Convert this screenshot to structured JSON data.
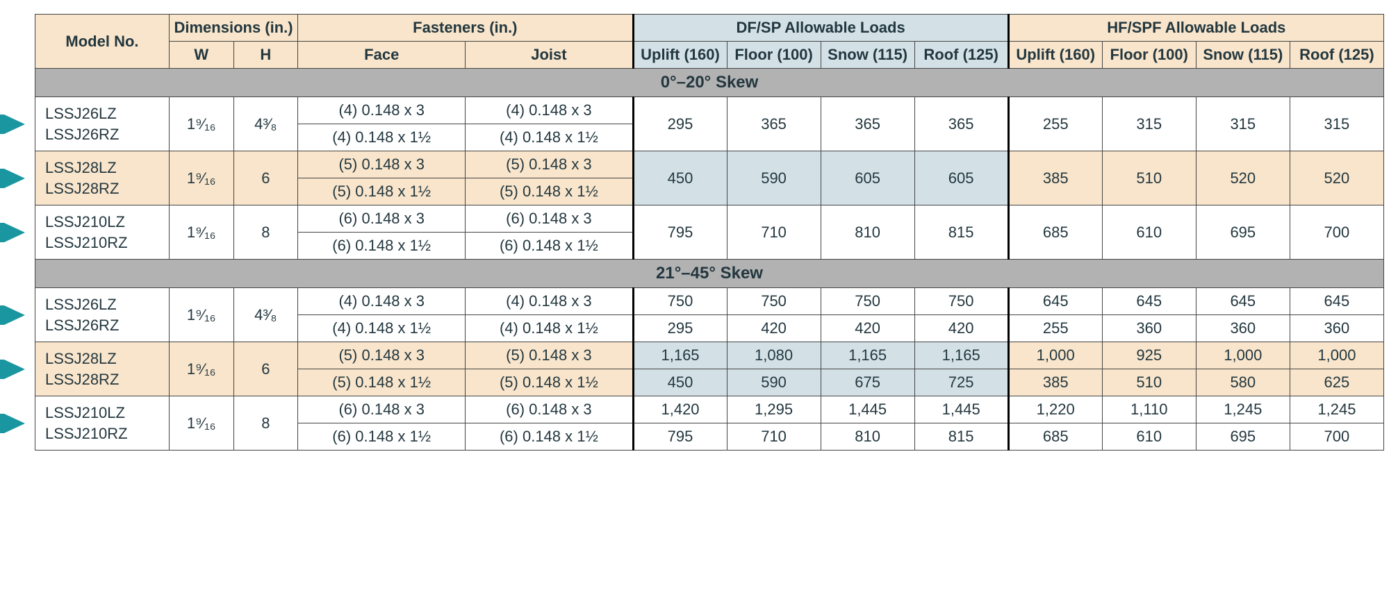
{
  "colors": {
    "header_tan": "#f8e5cb",
    "header_blue": "#d3e1e7",
    "section_gray": "#b2b2b2",
    "marker_teal": "#1996a0",
    "border": "#444444",
    "text": "#23373f"
  },
  "headers": {
    "model": "Model No.",
    "dimensions": "Dimensions (in.)",
    "dim_w": "W",
    "dim_h": "H",
    "fasteners": "Fasteners (in.)",
    "face": "Face",
    "joist": "Joist",
    "dfsp": "DF/SP Allowable Loads",
    "hfspf": "HF/SPF Allowable Loads",
    "uplift": "Uplift (160)",
    "floor": "Floor (100)",
    "snow": "Snow (115)",
    "roof": "Roof (125)"
  },
  "sections": [
    {
      "title": "0°–20° Skew",
      "rows": [
        {
          "shaded": false,
          "models": [
            "LSSJ26LZ",
            "LSSJ26RZ"
          ],
          "w": "1⁹⁄₁₆",
          "h": "4³⁄₈",
          "fasteners": [
            {
              "face": "(4) 0.148 x 3",
              "joist": "(4) 0.148 x 3"
            },
            {
              "face": "(4) 0.148 x 1½",
              "joist": "(4) 0.148 x 1½"
            }
          ],
          "merged_loads": true,
          "dfsp": {
            "uplift": "295",
            "floor": "365",
            "snow": "365",
            "roof": "365"
          },
          "hfspf": {
            "uplift": "255",
            "floor": "315",
            "snow": "315",
            "roof": "315"
          }
        },
        {
          "shaded": true,
          "models": [
            "LSSJ28LZ",
            "LSSJ28RZ"
          ],
          "w": "1⁹⁄₁₆",
          "h": "6",
          "fasteners": [
            {
              "face": "(5) 0.148 x 3",
              "joist": "(5) 0.148 x 3"
            },
            {
              "face": "(5) 0.148 x 1½",
              "joist": "(5) 0.148 x 1½"
            }
          ],
          "merged_loads": true,
          "dfsp_blue": true,
          "dfsp": {
            "uplift": "450",
            "floor": "590",
            "snow": "605",
            "roof": "605"
          },
          "hfspf": {
            "uplift": "385",
            "floor": "510",
            "snow": "520",
            "roof": "520"
          }
        },
        {
          "shaded": false,
          "models": [
            "LSSJ210LZ",
            "LSSJ210RZ"
          ],
          "w": "1⁹⁄₁₆",
          "h": "8",
          "fasteners": [
            {
              "face": "(6) 0.148 x 3",
              "joist": "(6) 0.148 x 3"
            },
            {
              "face": "(6) 0.148 x 1½",
              "joist": "(6) 0.148 x 1½"
            }
          ],
          "merged_loads": true,
          "dfsp": {
            "uplift": "795",
            "floor": "710",
            "snow": "810",
            "roof": "815"
          },
          "hfspf": {
            "uplift": "685",
            "floor": "610",
            "snow": "695",
            "roof": "700"
          }
        }
      ]
    },
    {
      "title": "21°–45° Skew",
      "rows": [
        {
          "shaded": false,
          "models": [
            "LSSJ26LZ",
            "LSSJ26RZ"
          ],
          "w": "1⁹⁄₁₆",
          "h": "4³⁄₈",
          "fasteners": [
            {
              "face": "(4) 0.148 x 3",
              "joist": "(4) 0.148 x 3"
            },
            {
              "face": "(4) 0.148 x 1½",
              "joist": "(4) 0.148 x 1½"
            }
          ],
          "merged_loads": false,
          "loads": [
            {
              "dfsp": {
                "uplift": "750",
                "floor": "750",
                "snow": "750",
                "roof": "750"
              },
              "hfspf": {
                "uplift": "645",
                "floor": "645",
                "snow": "645",
                "roof": "645"
              }
            },
            {
              "dfsp": {
                "uplift": "295",
                "floor": "420",
                "snow": "420",
                "roof": "420"
              },
              "hfspf": {
                "uplift": "255",
                "floor": "360",
                "snow": "360",
                "roof": "360"
              }
            }
          ]
        },
        {
          "shaded": true,
          "models": [
            "LSSJ28LZ",
            "LSSJ28RZ"
          ],
          "w": "1⁹⁄₁₆",
          "h": "6",
          "fasteners": [
            {
              "face": "(5) 0.148 x 3",
              "joist": "(5) 0.148 x 3"
            },
            {
              "face": "(5) 0.148 x 1½",
              "joist": "(5) 0.148 x 1½"
            }
          ],
          "merged_loads": false,
          "dfsp_blue": true,
          "loads": [
            {
              "dfsp": {
                "uplift": "1,165",
                "floor": "1,080",
                "snow": "1,165",
                "roof": "1,165"
              },
              "hfspf": {
                "uplift": "1,000",
                "floor": "925",
                "snow": "1,000",
                "roof": "1,000"
              }
            },
            {
              "dfsp": {
                "uplift": "450",
                "floor": "590",
                "snow": "675",
                "roof": "725"
              },
              "hfspf": {
                "uplift": "385",
                "floor": "510",
                "snow": "580",
                "roof": "625"
              }
            }
          ]
        },
        {
          "shaded": false,
          "models": [
            "LSSJ210LZ",
            "LSSJ210RZ"
          ],
          "w": "1⁹⁄₁₆",
          "h": "8",
          "fasteners": [
            {
              "face": "(6) 0.148 x 3",
              "joist": "(6) 0.148 x 3"
            },
            {
              "face": "(6) 0.148 x 1½",
              "joist": "(6) 0.148 x 1½"
            }
          ],
          "merged_loads": false,
          "loads": [
            {
              "dfsp": {
                "uplift": "1,420",
                "floor": "1,295",
                "snow": "1,445",
                "roof": "1,445"
              },
              "hfspf": {
                "uplift": "1,220",
                "floor": "1,110",
                "snow": "1,245",
                "roof": "1,245"
              }
            },
            {
              "dfsp": {
                "uplift": "795",
                "floor": "710",
                "snow": "810",
                "roof": "815"
              },
              "hfspf": {
                "uplift": "685",
                "floor": "610",
                "snow": "695",
                "roof": "700"
              }
            }
          ]
        }
      ]
    }
  ]
}
